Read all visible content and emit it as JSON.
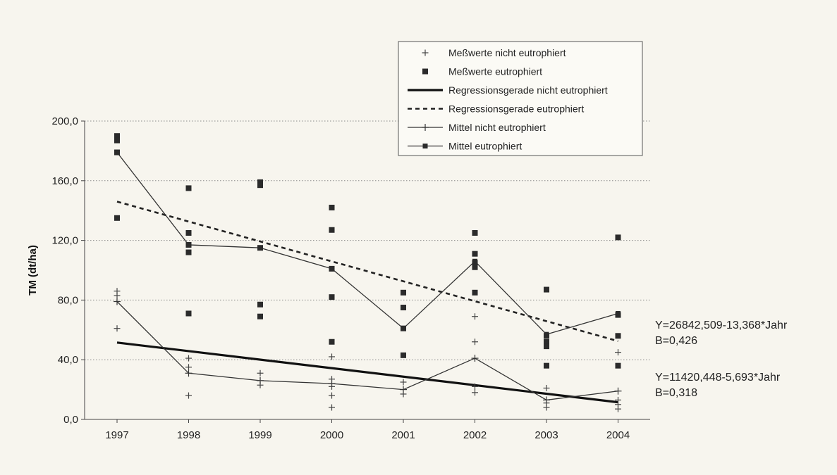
{
  "chart_data": {
    "type": "scatter",
    "ylabel": "TM (dt/ha)",
    "xlabel": "",
    "categories": [
      "1997",
      "1998",
      "1999",
      "2000",
      "2001",
      "2002",
      "2003",
      "2004"
    ],
    "ylim": [
      0,
      200
    ],
    "yticks": [
      0,
      40,
      80,
      120,
      160,
      200
    ],
    "ytick_labels": [
      "0,0",
      "40,0",
      "80,0",
      "120,0",
      "160,0",
      "200,0"
    ],
    "grid": "horizontal dotted",
    "legend_position": "top-right",
    "legend": [
      {
        "key": "mess_nicht",
        "label": "Meßwerte nicht eutrophiert"
      },
      {
        "key": "mess_eu",
        "label": "Meßwerte eutrophiert"
      },
      {
        "key": "reg_nicht",
        "label": "Regressionsgerade nicht eutrophiert"
      },
      {
        "key": "reg_eu",
        "label": "Regressionsgerade eutrophiert"
      },
      {
        "key": "mittel_nicht",
        "label": "Mittel nicht eutrophiert"
      },
      {
        "key": "mittel_eu",
        "label": "Mittel eutrophiert"
      }
    ],
    "series": [
      {
        "key": "mess_nicht",
        "marker": "plus",
        "points": [
          [
            1997,
            86
          ],
          [
            1997,
            83
          ],
          [
            1997,
            61
          ],
          [
            1998,
            41
          ],
          [
            1998,
            35
          ],
          [
            1998,
            16
          ],
          [
            1999,
            31
          ],
          [
            1999,
            26
          ],
          [
            1999,
            23
          ],
          [
            2000,
            42
          ],
          [
            2000,
            27
          ],
          [
            2000,
            22
          ],
          [
            2000,
            16
          ],
          [
            2000,
            8
          ],
          [
            2001,
            25
          ],
          [
            2001,
            17
          ],
          [
            2002,
            69
          ],
          [
            2002,
            52
          ],
          [
            2002,
            22
          ],
          [
            2002,
            18
          ],
          [
            2003,
            21
          ],
          [
            2003,
            11
          ],
          [
            2003,
            8
          ],
          [
            2004,
            45
          ],
          [
            2004,
            13
          ],
          [
            2004,
            10
          ],
          [
            2004,
            7
          ]
        ]
      },
      {
        "key": "mess_eu",
        "marker": "square",
        "points": [
          [
            1997,
            190
          ],
          [
            1997,
            187
          ],
          [
            1997,
            179
          ],
          [
            1997,
            135
          ],
          [
            1998,
            155
          ],
          [
            1998,
            125
          ],
          [
            1998,
            117
          ],
          [
            1998,
            112
          ],
          [
            1998,
            71
          ],
          [
            1999,
            159
          ],
          [
            1999,
            157
          ],
          [
            1999,
            115
          ],
          [
            1999,
            77
          ],
          [
            1999,
            69
          ],
          [
            2000,
            142
          ],
          [
            2000,
            127
          ],
          [
            2000,
            101
          ],
          [
            2000,
            82
          ],
          [
            2000,
            52
          ],
          [
            2001,
            85
          ],
          [
            2001,
            75
          ],
          [
            2001,
            61
          ],
          [
            2001,
            43
          ],
          [
            2002,
            125
          ],
          [
            2002,
            111
          ],
          [
            2002,
            105
          ],
          [
            2002,
            102
          ],
          [
            2002,
            85
          ],
          [
            2003,
            87
          ],
          [
            2003,
            56
          ],
          [
            2003,
            52
          ],
          [
            2003,
            49
          ],
          [
            2003,
            36
          ],
          [
            2004,
            122
          ],
          [
            2004,
            70
          ],
          [
            2004,
            56
          ],
          [
            2004,
            36
          ]
        ]
      },
      {
        "key": "reg_nicht",
        "type": "line",
        "x": [
          1997,
          2004
        ],
        "y": [
          51.5,
          11.5
        ]
      },
      {
        "key": "reg_eu",
        "type": "line",
        "x": [
          1997,
          2004
        ],
        "y": [
          146,
          52.5
        ]
      },
      {
        "key": "mittel_nicht",
        "type": "line",
        "marker": "plus",
        "x": [
          1997,
          1998,
          1999,
          2000,
          2001,
          2002,
          2003,
          2004
        ],
        "y": [
          79,
          31,
          26,
          24,
          20,
          41,
          13,
          19
        ]
      },
      {
        "key": "mittel_eu",
        "type": "line",
        "marker": "square",
        "x": [
          1997,
          1998,
          1999,
          2000,
          2001,
          2002,
          2003,
          2004
        ],
        "y": [
          179,
          117,
          115,
          101,
          61,
          106,
          57,
          71
        ]
      }
    ],
    "annotations": [
      {
        "line1": "Y=26842,509-13,368*Jahr",
        "line2": "B=0,426"
      },
      {
        "line1": "Y=11420,448-5,693*Jahr",
        "line2": "B=0,318"
      }
    ]
  }
}
